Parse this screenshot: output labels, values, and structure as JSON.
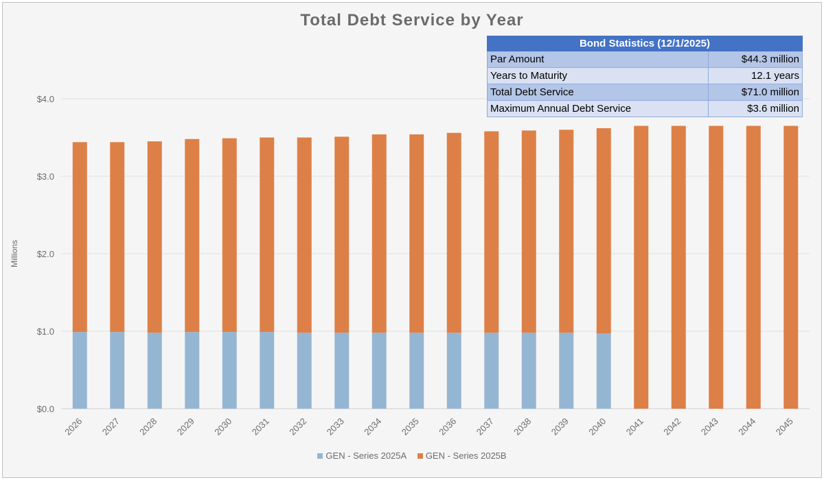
{
  "chart_data": {
    "type": "bar",
    "stacked": true,
    "title": "Total Debt Service by Year",
    "ylabel": "Millions",
    "xlabel": "",
    "ylim": [
      0,
      4.0
    ],
    "yticks": [
      "$0.0",
      "$1.0",
      "$2.0",
      "$3.0",
      "$4.0"
    ],
    "grid": true,
    "legend": "bottom",
    "categories": [
      "2026",
      "2027",
      "2028",
      "2029",
      "2030",
      "2031",
      "2032",
      "2033",
      "2034",
      "2035",
      "2036",
      "2037",
      "2038",
      "2039",
      "2040",
      "2041",
      "2042",
      "2043",
      "2044",
      "2045"
    ],
    "series": [
      {
        "name": "GEN - Series 2025A",
        "color": "#95b6d3",
        "values": [
          0.99,
          0.99,
          0.98,
          0.99,
          0.99,
          0.99,
          0.98,
          0.98,
          0.98,
          0.98,
          0.98,
          0.98,
          0.98,
          0.98,
          0.97,
          0,
          0,
          0,
          0,
          0
        ]
      },
      {
        "name": "GEN - Series 2025B",
        "color": "#dd8047",
        "values": [
          2.45,
          2.45,
          2.47,
          2.49,
          2.5,
          2.51,
          2.52,
          2.53,
          2.56,
          2.56,
          2.58,
          2.6,
          2.61,
          2.62,
          2.65,
          3.65,
          3.65,
          3.65,
          3.65,
          3.65
        ]
      }
    ]
  },
  "stats_table": {
    "header": "Bond Statistics (12/1/2025)",
    "rows": [
      {
        "label": "Par Amount",
        "value": "$44.3 million"
      },
      {
        "label": "Years to Maturity",
        "value": "12.1 years"
      },
      {
        "label": "Total Debt Service",
        "value": "$71.0 million"
      },
      {
        "label": "Maximum Annual Debt Service",
        "value": "$3.6 million"
      }
    ]
  }
}
